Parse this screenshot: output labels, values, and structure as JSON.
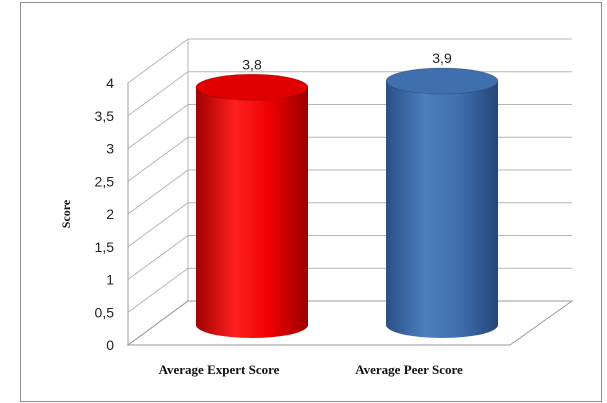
{
  "chart_data": {
    "type": "bar",
    "style": "3d-cylinder",
    "title": "",
    "xlabel": "",
    "ylabel": "Score",
    "ylim": [
      0,
      4
    ],
    "yticks": [
      "0",
      "0,5",
      "1",
      "1,5",
      "2",
      "2,5",
      "3",
      "3,5",
      "4"
    ],
    "categories": [
      "Average Expert Score",
      "Average Peer Score"
    ],
    "values": [
      3.8,
      3.9
    ],
    "data_labels": [
      "3,8",
      "3,9"
    ],
    "colors": [
      "#e00000",
      "#3f6fae"
    ],
    "grid": true,
    "legend": "none"
  }
}
